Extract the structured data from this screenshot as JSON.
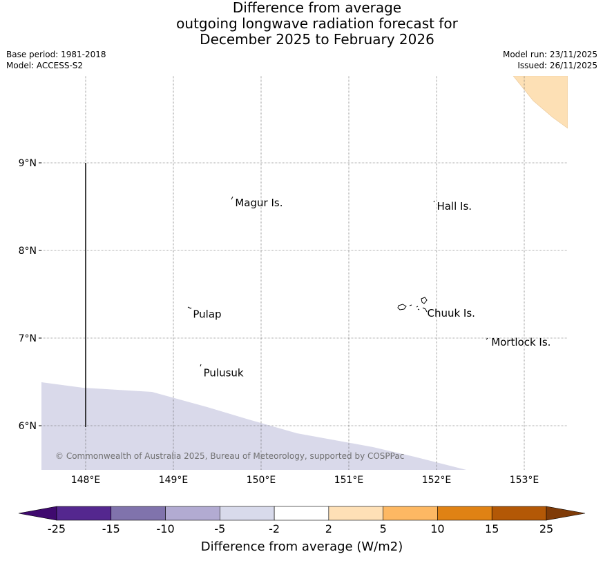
{
  "title": {
    "line1": "Difference from average",
    "line2": "outgoing longwave radiation forecast for",
    "line3": "December 2025 to February 2026"
  },
  "meta": {
    "base_period": "Base period: 1981-2018",
    "model": "Model: ACCESS-S2",
    "model_run": "Model run: 23/11/2025",
    "issued": "Issued: 26/11/2025"
  },
  "map": {
    "lat_labels": [
      "9°N",
      "8°N",
      "7°N",
      "6°N"
    ],
    "lon_labels": [
      "148°E",
      "149°E",
      "150°E",
      "151°E",
      "152°E",
      "153°E"
    ],
    "places": [
      {
        "name": "Magur Is.",
        "lon": 149.68,
        "lat": 8.55
      },
      {
        "name": "Hall Is.",
        "lon": 151.98,
        "lat": 8.51
      },
      {
        "name": "Pulap",
        "lon": 149.2,
        "lat": 7.28
      },
      {
        "name": "Chuuk Is.",
        "lon": 151.87,
        "lat": 7.29
      },
      {
        "name": "Mortlock Is.",
        "lon": 152.6,
        "lat": 6.96
      },
      {
        "name": "Pulusuk",
        "lon": 149.32,
        "lat": 6.61
      }
    ],
    "copyright": "© Commonwealth of Australia 2025, Bureau of Meteorology, supported by COSPPac",
    "anomaly_regions": [
      {
        "category": "-5 to -2",
        "color": "#d9d9ea"
      },
      {
        "category": "2 to 5",
        "color": "#fde0b5"
      }
    ]
  },
  "colorbar": {
    "label": "Difference from average (W/m2)",
    "ticks": [
      "-25",
      "-15",
      "-10",
      "-5",
      "-2",
      "2",
      "5",
      "10",
      "15",
      "25"
    ],
    "colors": [
      "#3f0a6f",
      "#54278f",
      "#8073ac",
      "#b2abd2",
      "#d8daeb",
      "#ffffff",
      "#fee0b6",
      "#fdb863",
      "#e08214",
      "#b35806",
      "#7f3b08"
    ]
  }
}
